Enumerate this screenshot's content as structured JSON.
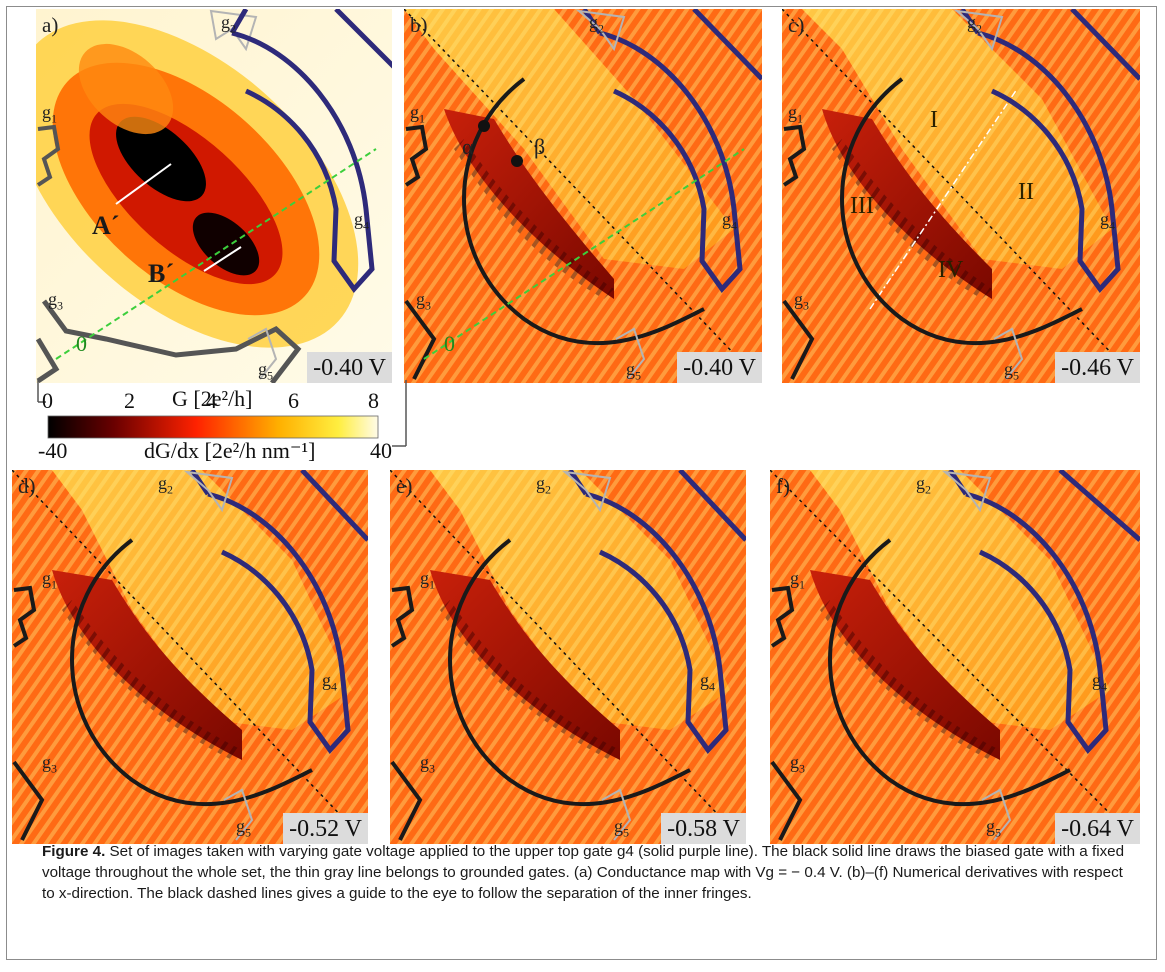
{
  "figure": {
    "panels": [
      {
        "label": "a)",
        "voltage": "-0.40 V",
        "kind": "conductance"
      },
      {
        "label": "b)",
        "voltage": "-0.40 V",
        "kind": "derivative"
      },
      {
        "label": "c)",
        "voltage": "-0.46 V",
        "kind": "derivative"
      },
      {
        "label": "d)",
        "voltage": "-0.52 V",
        "kind": "derivative"
      },
      {
        "label": "e)",
        "voltage": "-0.58 V",
        "kind": "derivative"
      },
      {
        "label": "f)",
        "voltage": "-0.64 V",
        "kind": "derivative"
      }
    ],
    "gate_labels": {
      "g1": "g",
      "g1_sub": "1",
      "g2": "g",
      "g2_sub": "2",
      "g3": "g",
      "g3_sub": "3",
      "g4": "g",
      "g4_sub": "4",
      "g5": "g",
      "g5_sub": "5"
    },
    "annotations": {
      "A": "A´",
      "B": "B´",
      "zero": "0",
      "alpha": "α",
      "beta": "β",
      "I": "I",
      "II": "II",
      "III": "III",
      "IV": "IV"
    },
    "colorbar": {
      "conductance_ticks": [
        "0",
        "2",
        "4",
        "6",
        "8"
      ],
      "conductance_label": "G [2e²/h]",
      "derivative_ticks": [
        "-40",
        "40"
      ],
      "derivative_label": "dG/dx [2e²/h nm⁻¹]"
    },
    "colors": {
      "gate_biased": "#2b2b2b",
      "gate_top": "#2e2a7a",
      "gate_grounded": "#b4b4b4",
      "guide_green": "#3ccf3c"
    }
  },
  "caption": {
    "label": "Figure 4.",
    "text": "Set of images taken with varying gate voltage applied to the upper top gate g4 (solid purple line). The black solid line draws the biased gate with a fixed voltage throughout the whole set, the thin gray line belongs to grounded gates. (a) Conductance map with Vg = − 0.4 V. (b)–(f) Numerical derivatives with respect to x-direction. The black dashed lines gives a guide to the eye to follow the separation of the inner fringes."
  }
}
